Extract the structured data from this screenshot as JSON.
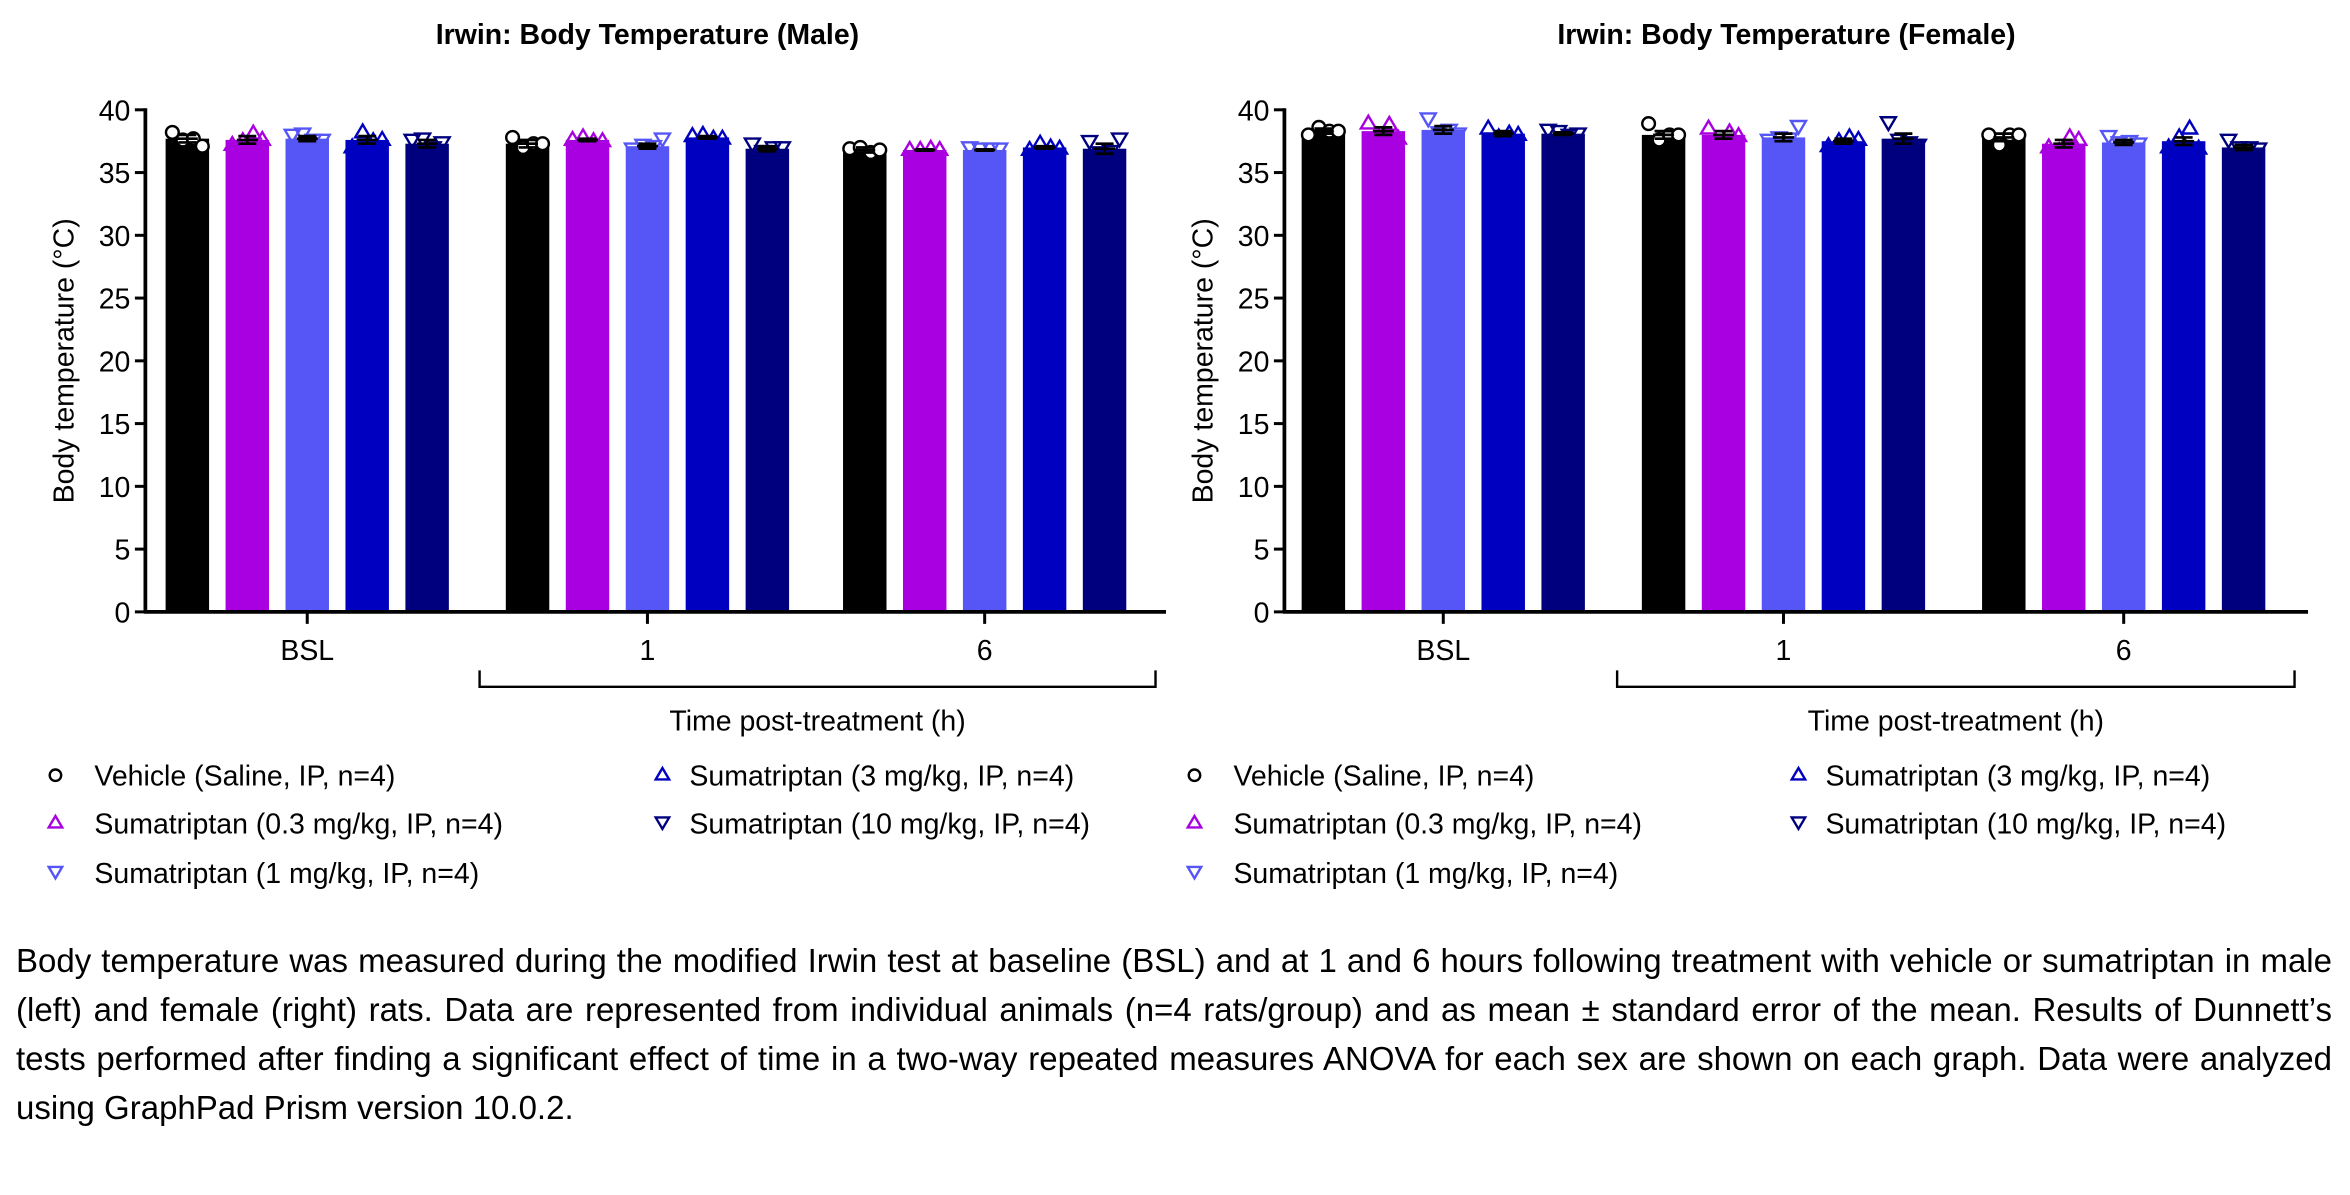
{
  "chart_data": [
    {
      "type": "bar",
      "title": "Irwin: Body Temperature (Male)",
      "ylabel": "Body temperature (°C)",
      "xlabel": "Time post-treatment (h)",
      "ylim": [
        0,
        40
      ],
      "yticks": [
        0,
        5,
        10,
        15,
        20,
        25,
        30,
        35,
        40
      ],
      "categories": [
        "BSL",
        "1",
        "6"
      ],
      "grid": false,
      "series": [
        {
          "name": "Vehicle (Saline, IP, n=4)",
          "color": "#000000",
          "marker": "circle",
          "values": [
            37.7,
            37.3,
            36.8
          ],
          "sem": [
            0.3,
            0.3,
            0.2
          ],
          "points": [
            [
              38.2,
              37.6,
              37.7,
              37.1
            ],
            [
              37.8,
              37.0,
              37.3,
              37.3
            ],
            [
              36.9,
              37.0,
              36.6,
              36.8
            ]
          ]
        },
        {
          "name": "Sumatriptan (0.3 mg/kg, IP, n=4)",
          "color": "#a800e0",
          "marker": "triangle-up",
          "values": [
            37.6,
            37.6,
            36.8
          ],
          "sem": [
            0.3,
            0.1,
            0.05
          ],
          "points": [
            [
              37.2,
              37.5,
              38.1,
              37.6
            ],
            [
              37.6,
              37.8,
              37.5,
              37.5
            ],
            [
              36.8,
              36.8,
              36.9,
              36.8
            ]
          ]
        },
        {
          "name": "Sumatriptan (1 mg/kg, IP, n=4)",
          "color": "#5656f6",
          "marker": "triangle-down",
          "values": [
            37.7,
            37.1,
            36.8
          ],
          "sem": [
            0.2,
            0.2,
            0.05
          ],
          "points": [
            [
              37.9,
              38.0,
              37.5,
              37.5
            ],
            [
              36.8,
              37.1,
              37.0,
              37.6
            ],
            [
              36.9,
              36.8,
              36.8,
              36.8
            ]
          ]
        },
        {
          "name": "Sumatriptan (3 mg/kg, IP, n=4)",
          "color": "#0000c0",
          "marker": "triangle-up",
          "values": [
            37.6,
            37.8,
            37.0
          ],
          "sem": [
            0.3,
            0.1,
            0.1
          ],
          "points": [
            [
              37.0,
              38.2,
              37.5,
              37.6
            ],
            [
              37.9,
              38.0,
              37.7,
              37.7
            ],
            [
              36.8,
              37.3,
              37.0,
              36.9
            ]
          ]
        },
        {
          "name": "Sumatriptan (10 mg/kg, IP, n=4)",
          "color": "#00007e",
          "marker": "triangle-down",
          "values": [
            37.3,
            36.9,
            36.9
          ],
          "sem": [
            0.3,
            0.2,
            0.4
          ],
          "points": [
            [
              37.5,
              37.6,
              36.9,
              37.3
            ],
            [
              37.2,
              36.6,
              36.9,
              36.9
            ],
            [
              37.4,
              36.5,
              36.6,
              37.6
            ]
          ]
        }
      ]
    },
    {
      "type": "bar",
      "title": "Irwin: Body Temperature (Female)",
      "ylabel": "Body temperature (°C)",
      "xlabel": "Time post-treatment (h)",
      "ylim": [
        0,
        40
      ],
      "yticks": [
        0,
        5,
        10,
        15,
        20,
        25,
        30,
        35,
        40
      ],
      "categories": [
        "BSL",
        "1",
        "6"
      ],
      "grid": false,
      "series": [
        {
          "name": "Vehicle (Saline, IP, n=4)",
          "color": "#000000",
          "marker": "circle",
          "values": [
            38.3,
            38.0,
            37.8
          ],
          "sem": [
            0.2,
            0.3,
            0.3
          ],
          "points": [
            [
              38.0,
              38.6,
              38.3,
              38.3
            ],
            [
              38.9,
              37.6,
              38.0,
              38.0
            ],
            [
              38.0,
              37.2,
              38.0,
              38.0
            ]
          ]
        },
        {
          "name": "Sumatriptan (0.3 mg/kg, IP, n=4)",
          "color": "#a800e0",
          "marker": "triangle-up",
          "values": [
            38.3,
            38.0,
            37.3
          ],
          "sem": [
            0.3,
            0.3,
            0.3
          ],
          "points": [
            [
              38.9,
              37.8,
              38.8,
              37.7
            ],
            [
              38.5,
              37.3,
              38.2,
              37.9
            ],
            [
              37.0,
              36.7,
              37.8,
              37.6
            ]
          ]
        },
        {
          "name": "Sumatriptan (1 mg/kg, IP, n=4)",
          "color": "#5656f6",
          "marker": "triangle-down",
          "values": [
            38.4,
            37.8,
            37.4
          ],
          "sem": [
            0.3,
            0.3,
            0.2
          ],
          "points": [
            [
              39.2,
              38.1,
              38.3,
              38.0
            ],
            [
              37.5,
              37.7,
              37.6,
              38.6
            ],
            [
              37.8,
              37.3,
              37.4,
              37.2
            ]
          ]
        },
        {
          "name": "Sumatriptan (3 mg/kg, IP, n=4)",
          "color": "#0000c0",
          "marker": "triangle-up",
          "values": [
            38.1,
            37.5,
            37.5
          ],
          "sem": [
            0.2,
            0.2,
            0.3
          ],
          "points": [
            [
              38.5,
              37.8,
              38.1,
              38.0
            ],
            [
              37.1,
              37.5,
              37.8,
              37.6
            ],
            [
              37.0,
              37.8,
              38.5,
              36.9
            ]
          ]
        },
        {
          "name": "Sumatriptan (10 mg/kg, IP, n=4)",
          "color": "#00007e",
          "marker": "triangle-down",
          "values": [
            38.1,
            37.7,
            37.0
          ],
          "sem": [
            0.1,
            0.4,
            0.2
          ],
          "points": [
            [
              38.3,
              38.2,
              37.9,
              38.0
            ],
            [
              38.9,
              37.5,
              37.3,
              37.1
            ],
            [
              37.5,
              36.9,
              36.9,
              36.8
            ]
          ]
        }
      ]
    }
  ],
  "caption": "Body temperature was measured during the modified Irwin test at baseline (BSL) and at 1 and 6 hours following treatment with vehicle or sumatriptan in male (left) and female (right) rats. Data are represented from individual animals (n=4 rats/group) and as mean ± standard error of the mean. Results of Dunnett’s tests performed after finding a significant effect of time in a two-way repeated measures ANOVA for each sex are shown on each graph. Data were analyzed using GraphPad Prism version 10.0.2."
}
